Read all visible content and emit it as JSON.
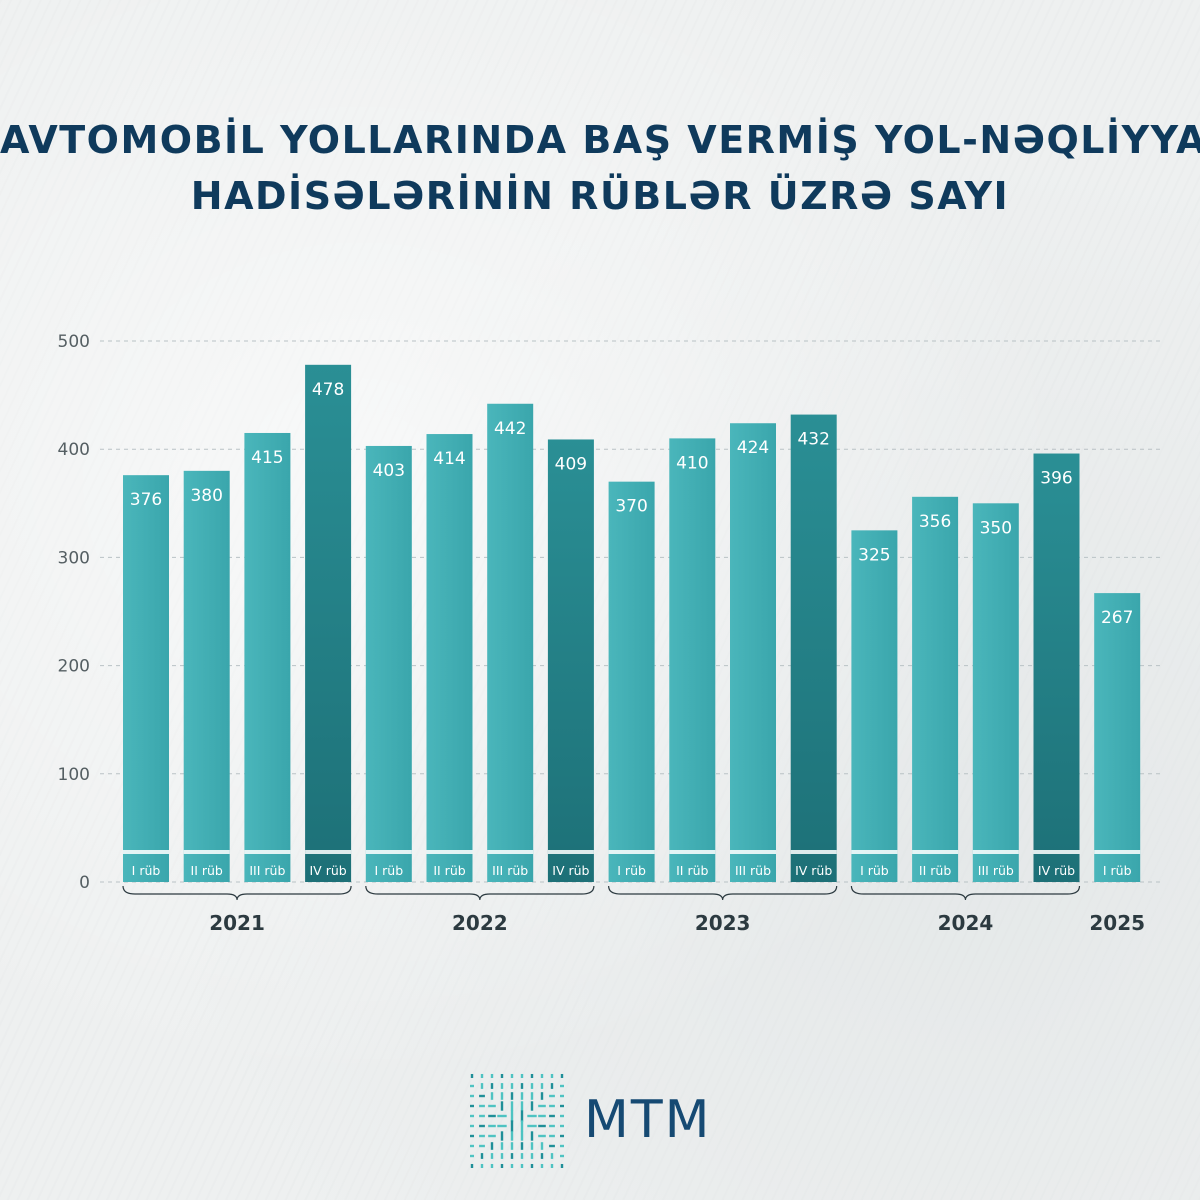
{
  "title": {
    "line1": "AVTOMOBİL YOLLARINDA BAŞ VERMİŞ YOL-NƏQLİYYAT",
    "line2": "HADİSƏLƏRİNİN RÜBLƏR ÜZRƏ SAYI"
  },
  "brand": {
    "name": "MTM",
    "color": "#164a73"
  },
  "colors": {
    "bar_light": "#46b3b8",
    "bar_dark": "#1f7f86",
    "title": "#0f3a5c"
  },
  "chart_data": {
    "type": "bar",
    "categories": [
      "I rüb",
      "II rüb",
      "III rüb",
      "IV rüb",
      "I rüb",
      "II rüb",
      "III rüb",
      "IV rüb",
      "I rüb",
      "II rüb",
      "III rüb",
      "IV rüb",
      "I rüb",
      "II rüb",
      "III rüb",
      "IV rüb",
      "I rüb"
    ],
    "years": [
      {
        "label": "2021",
        "quarters": 4
      },
      {
        "label": "2022",
        "quarters": 4
      },
      {
        "label": "2023",
        "quarters": 4
      },
      {
        "label": "2024",
        "quarters": 4
      },
      {
        "label": "2025",
        "quarters": 1
      }
    ],
    "values": [
      376,
      380,
      415,
      478,
      403,
      414,
      442,
      409,
      370,
      410,
      424,
      432,
      325,
      356,
      350,
      396,
      267
    ],
    "ylim": [
      0,
      500
    ],
    "yticks": [
      0,
      100,
      200,
      300,
      400,
      500
    ],
    "grid": true
  }
}
